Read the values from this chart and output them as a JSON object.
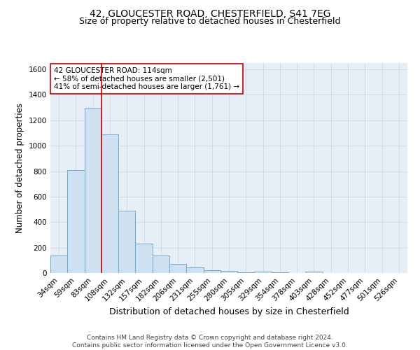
{
  "title1": "42, GLOUCESTER ROAD, CHESTERFIELD, S41 7EG",
  "title2": "Size of property relative to detached houses in Chesterfield",
  "xlabel": "Distribution of detached houses by size in Chesterfield",
  "ylabel": "Number of detached properties",
  "categories": [
    "34sqm",
    "59sqm",
    "83sqm",
    "108sqm",
    "132sqm",
    "157sqm",
    "182sqm",
    "206sqm",
    "231sqm",
    "255sqm",
    "280sqm",
    "305sqm",
    "329sqm",
    "354sqm",
    "378sqm",
    "403sqm",
    "428sqm",
    "452sqm",
    "477sqm",
    "501sqm",
    "526sqm"
  ],
  "values": [
    140,
    810,
    1300,
    1090,
    490,
    232,
    135,
    70,
    44,
    22,
    14,
    7,
    12,
    4,
    0,
    10,
    0,
    0,
    0,
    0,
    0
  ],
  "bar_color": "#cfe0f0",
  "bar_edge_color": "#6aaed6",
  "grid_color": "#d0dce8",
  "background_color": "#e8eef5",
  "vline_color": "#cc0000",
  "vline_x_index": 3,
  "annotation_text": "42 GLOUCESTER ROAD: 114sqm\n← 58% of detached houses are smaller (2,501)\n41% of semi-detached houses are larger (1,761) →",
  "annotation_box_facecolor": "white",
  "annotation_box_edgecolor": "#cc0000",
  "ylim": [
    0,
    1650
  ],
  "yticks": [
    0,
    200,
    400,
    600,
    800,
    1000,
    1200,
    1400,
    1600
  ],
  "title1_fontsize": 10,
  "title2_fontsize": 9,
  "xlabel_fontsize": 9,
  "ylabel_fontsize": 8.5,
  "tick_fontsize": 7.5,
  "annotation_fontsize": 7.5,
  "footer_fontsize": 6.5,
  "footer": "Contains HM Land Registry data © Crown copyright and database right 2024.\nContains public sector information licensed under the Open Government Licence v3.0."
}
